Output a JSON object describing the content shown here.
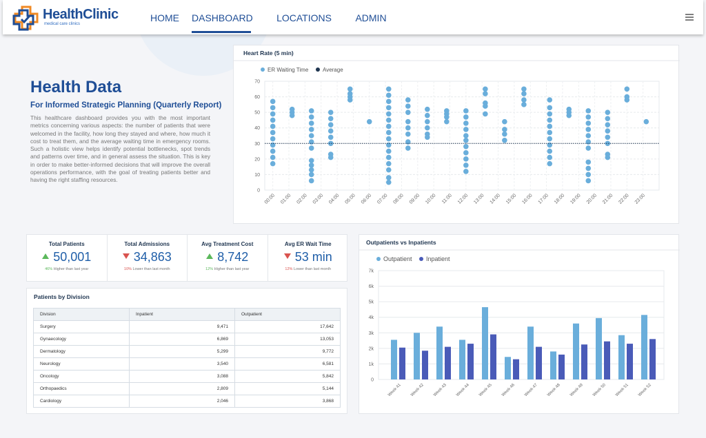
{
  "nav": {
    "logo_title": "HealthClinic",
    "logo_subtitle": "medical care clinics",
    "items": [
      {
        "label": "HOME"
      },
      {
        "label": "DASHBOARD",
        "active": true
      },
      {
        "label": "LOCATIONS"
      },
      {
        "label": "ADMIN"
      }
    ]
  },
  "intro": {
    "title": "Health Data",
    "subtitle": "For Informed Strategic Planning (Quarterly Report)",
    "text": "This healthcare dashboard provides you with the most important metrics concerning various aspects: the number of patients that were welcomed in the facility, how long they stayed and where, how much it cost to treat them, and the average waiting time in emergency rooms. Such a holistic view helps identify potential bottlenecks, spot trends and patterns over time, and in general assess the situation. This is key in order to make better-informed decisions that will improve the overall operations performance, with the goal of treating patients better and having the right staffing resources."
  },
  "kpis": [
    {
      "label": "Total Patients",
      "value": "50,001",
      "direction": "up",
      "change": "46%",
      "note": "Higher than last year"
    },
    {
      "label": "Total Admissions",
      "value": "34,863",
      "direction": "down",
      "change": "10%",
      "note": "Lower than last month"
    },
    {
      "label": "Avg Treatment Cost",
      "value": "8,742",
      "direction": "up",
      "change": "12%",
      "note": "Higher than last year"
    },
    {
      "label": "Avg ER Wait Time",
      "value": "53 min",
      "direction": "down",
      "change": "12%",
      "note": "Lower than last month"
    }
  ],
  "table": {
    "title": "Patients by Division",
    "columns": [
      "Division",
      "Inpatient",
      "Outpatient"
    ],
    "rows": [
      [
        "Surgery",
        "9,471",
        "17,642"
      ],
      [
        "Gynaecology",
        "6,869",
        "13,053"
      ],
      [
        "Dermatology",
        "5,299",
        "9,772"
      ],
      [
        "Neurology",
        "3,540",
        "6,581"
      ],
      [
        "Oncology",
        "3,088",
        "5,842"
      ],
      [
        "Orthopaedics",
        "2,809",
        "5,144"
      ],
      [
        "Cardiology",
        "2,046",
        "3,868"
      ]
    ]
  },
  "chart_data": [
    {
      "type": "scatter",
      "title": "Heart Rate (5 min)",
      "grid": true,
      "xlim": [
        -0.5,
        24
      ],
      "xticks": [
        {
          "value": 0,
          "label": "00:00"
        },
        {
          "value": 1,
          "label": "01:00"
        },
        {
          "value": 2,
          "label": "02:00"
        },
        {
          "value": 3,
          "label": "03:00"
        },
        {
          "value": 4,
          "label": "04:00"
        },
        {
          "value": 5,
          "label": "05:00"
        },
        {
          "value": 6,
          "label": "06:00"
        },
        {
          "value": 7,
          "label": "07:00"
        },
        {
          "value": 8,
          "label": "08:00"
        },
        {
          "value": 9,
          "label": "09:00"
        },
        {
          "value": 10,
          "label": "10:00"
        },
        {
          "value": 11,
          "label": "11:00"
        },
        {
          "value": 12,
          "label": "12:00"
        },
        {
          "value": 13,
          "label": "13:00"
        },
        {
          "value": 14,
          "label": "14:00"
        },
        {
          "value": 15,
          "label": "15:00"
        },
        {
          "value": 16,
          "label": "16:00"
        },
        {
          "value": 17,
          "label": "17:00"
        },
        {
          "value": 18,
          "label": "18:00"
        },
        {
          "value": 19,
          "label": "19:00"
        },
        {
          "value": 20,
          "label": "20:00"
        },
        {
          "value": 21,
          "label": "21:00"
        },
        {
          "value": 22,
          "label": "22:00"
        },
        {
          "value": 23,
          "label": "23:00"
        }
      ],
      "ylim": [
        0,
        70
      ],
      "yticks": [
        0,
        10,
        20,
        30,
        40,
        50,
        60,
        70
      ],
      "series": [
        {
          "name": "ER Waiting Time",
          "color": "#6aaedb",
          "x": [
            0,
            1.2,
            2.4,
            3.6,
            4.8,
            6.0,
            7.2,
            8.4,
            9.6,
            10.8,
            12,
            13.2,
            14.4,
            15.6,
            17.2,
            18.4,
            19.6,
            20.8,
            22,
            23.2
          ],
          "values": [
            [
              17,
              21,
              25,
              29,
              33,
              37,
              41,
              45,
              49,
              53,
              57
            ],
            [
              48,
              50,
              52
            ],
            [
              6,
              10,
              13,
              16,
              19,
              27,
              31,
              35,
              39,
              43,
              47,
              51
            ],
            [
              21,
              23,
              30,
              34,
              38,
              42,
              46,
              50
            ],
            [
              58,
              60,
              62,
              65
            ],
            [
              44
            ],
            [
              5,
              8,
              13,
              17,
              21,
              25,
              29,
              33,
              37,
              41,
              45,
              49,
              53,
              57,
              61,
              65
            ],
            [
              27,
              31,
              36,
              40,
              44,
              50,
              54,
              58
            ],
            [
              34,
              36,
              40,
              44,
              48,
              52
            ],
            [
              44,
              47,
              49,
              51
            ],
            [
              12,
              16,
              20,
              24,
              28,
              32,
              35,
              39,
              43,
              47,
              51
            ],
            [
              49,
              54,
              56,
              62,
              65
            ],
            [
              32,
              36,
              39,
              44
            ],
            [
              55,
              58,
              62,
              65
            ],
            [
              17,
              21,
              25,
              29,
              33,
              37,
              41,
              45,
              49,
              53,
              58
            ],
            [
              48,
              50,
              52
            ],
            [
              6,
              10,
              14,
              18,
              27,
              31,
              35,
              39,
              43,
              47,
              51
            ],
            [
              21,
              23,
              30,
              34,
              38,
              42,
              46,
              50
            ],
            [
              58,
              60,
              65
            ],
            [
              44
            ]
          ]
        },
        {
          "name": "Average",
          "color": "#1f3550",
          "value": 30
        }
      ]
    },
    {
      "type": "bar",
      "title": "Outpatients vs Inpatients",
      "grid": true,
      "categories": [
        "Week 41",
        "Week 42",
        "Week 43",
        "Week 44",
        "Week 45",
        "Week 46",
        "Week 47",
        "Week 48",
        "Week 49",
        "Week 50",
        "Week 51",
        "Week 52"
      ],
      "ylim": [
        0,
        7000
      ],
      "yticks": [
        0,
        {
          "value": 1000,
          "label": "1k"
        },
        {
          "value": 2000,
          "label": "2k"
        },
        {
          "value": 3000,
          "label": "3k"
        },
        {
          "value": 4000,
          "label": "4k"
        },
        {
          "value": 5000,
          "label": "5k"
        },
        {
          "value": 6000,
          "label": "6k"
        },
        {
          "value": 7000,
          "label": "7k"
        }
      ],
      "series": [
        {
          "name": "Outpatient",
          "color": "#6aaedb",
          "values": [
            2550,
            3000,
            3400,
            2550,
            4650,
            1450,
            3400,
            1800,
            3600,
            3950,
            2850,
            4150
          ]
        },
        {
          "name": "Inpatient",
          "color": "#4a5bb8",
          "values": [
            2050,
            1850,
            2100,
            2300,
            2900,
            1300,
            2100,
            1600,
            2250,
            2450,
            2300,
            2600
          ]
        }
      ]
    }
  ]
}
